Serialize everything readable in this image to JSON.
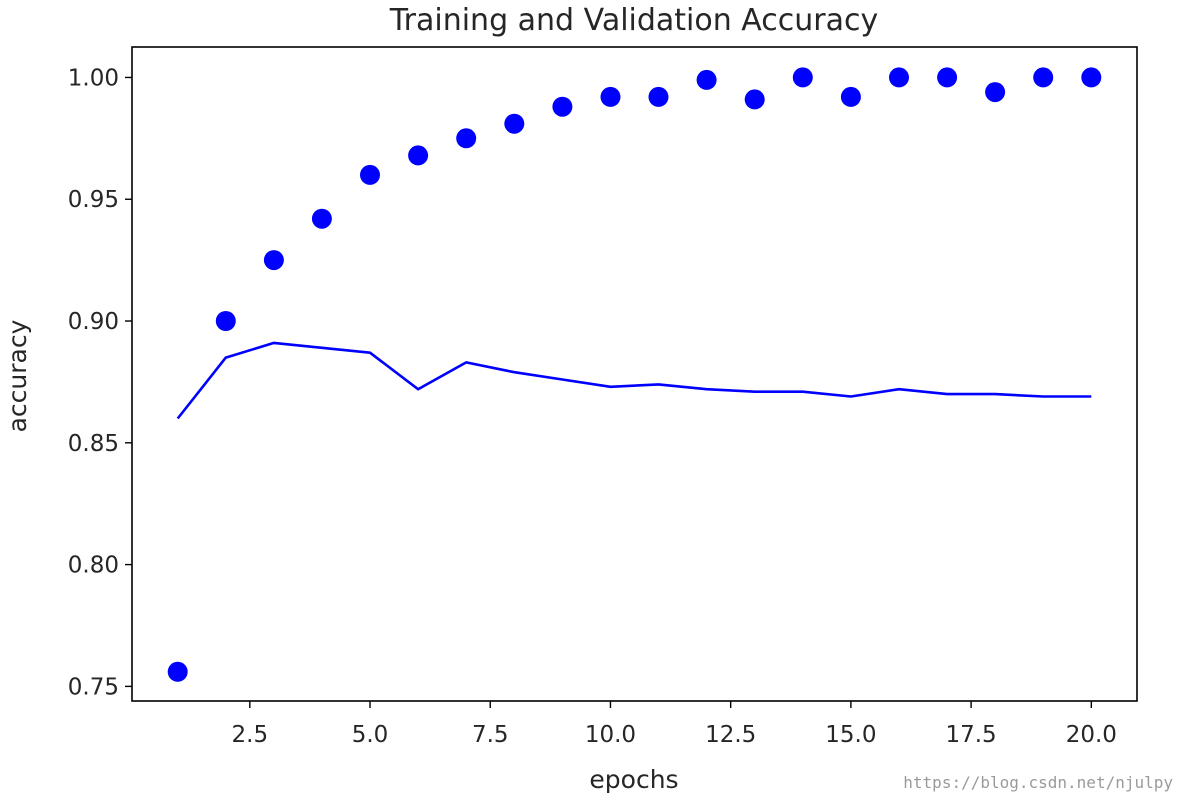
{
  "chart_data": {
    "type": "line",
    "title": "Training and Validation Accuracy",
    "xlabel": "epochs",
    "ylabel": "accuracy",
    "xlim": [
      0.05,
      20.95
    ],
    "ylim": [
      0.744,
      1.0125
    ],
    "xticks": [
      2.5,
      5.0,
      7.5,
      10.0,
      12.5,
      15.0,
      17.5,
      20.0
    ],
    "xtick_labels": [
      "2.5",
      "5.0",
      "7.5",
      "10.0",
      "12.5",
      "15.0",
      "17.5",
      "20.0"
    ],
    "yticks": [
      0.75,
      0.8,
      0.85,
      0.9,
      0.95,
      1.0
    ],
    "ytick_labels": [
      "0.75",
      "0.80",
      "0.85",
      "0.90",
      "0.95",
      "1.00"
    ],
    "grid": false,
    "legend": "none",
    "series": [
      {
        "style": "dots",
        "color": "#0000ff",
        "x": [
          1,
          2,
          3,
          4,
          5,
          6,
          7,
          8,
          9,
          10,
          11,
          12,
          13,
          14,
          15,
          16,
          17,
          18,
          19,
          20
        ],
        "y": [
          0.756,
          0.9,
          0.925,
          0.942,
          0.96,
          0.968,
          0.975,
          0.981,
          0.988,
          0.992,
          0.992,
          0.999,
          0.991,
          1.0,
          0.992,
          1.0,
          1.0,
          0.994,
          1.0,
          1.0
        ]
      },
      {
        "style": "line",
        "color": "#0000ff",
        "x": [
          1,
          2,
          3,
          4,
          5,
          6,
          7,
          8,
          9,
          10,
          11,
          12,
          13,
          14,
          15,
          16,
          17,
          18,
          19,
          20
        ],
        "y": [
          0.86,
          0.885,
          0.891,
          0.889,
          0.887,
          0.872,
          0.883,
          0.879,
          0.876,
          0.873,
          0.874,
          0.872,
          0.871,
          0.871,
          0.869,
          0.872,
          0.87,
          0.87,
          0.869,
          0.869
        ]
      }
    ]
  },
  "watermark": "https://blog.csdn.net/njulpy"
}
